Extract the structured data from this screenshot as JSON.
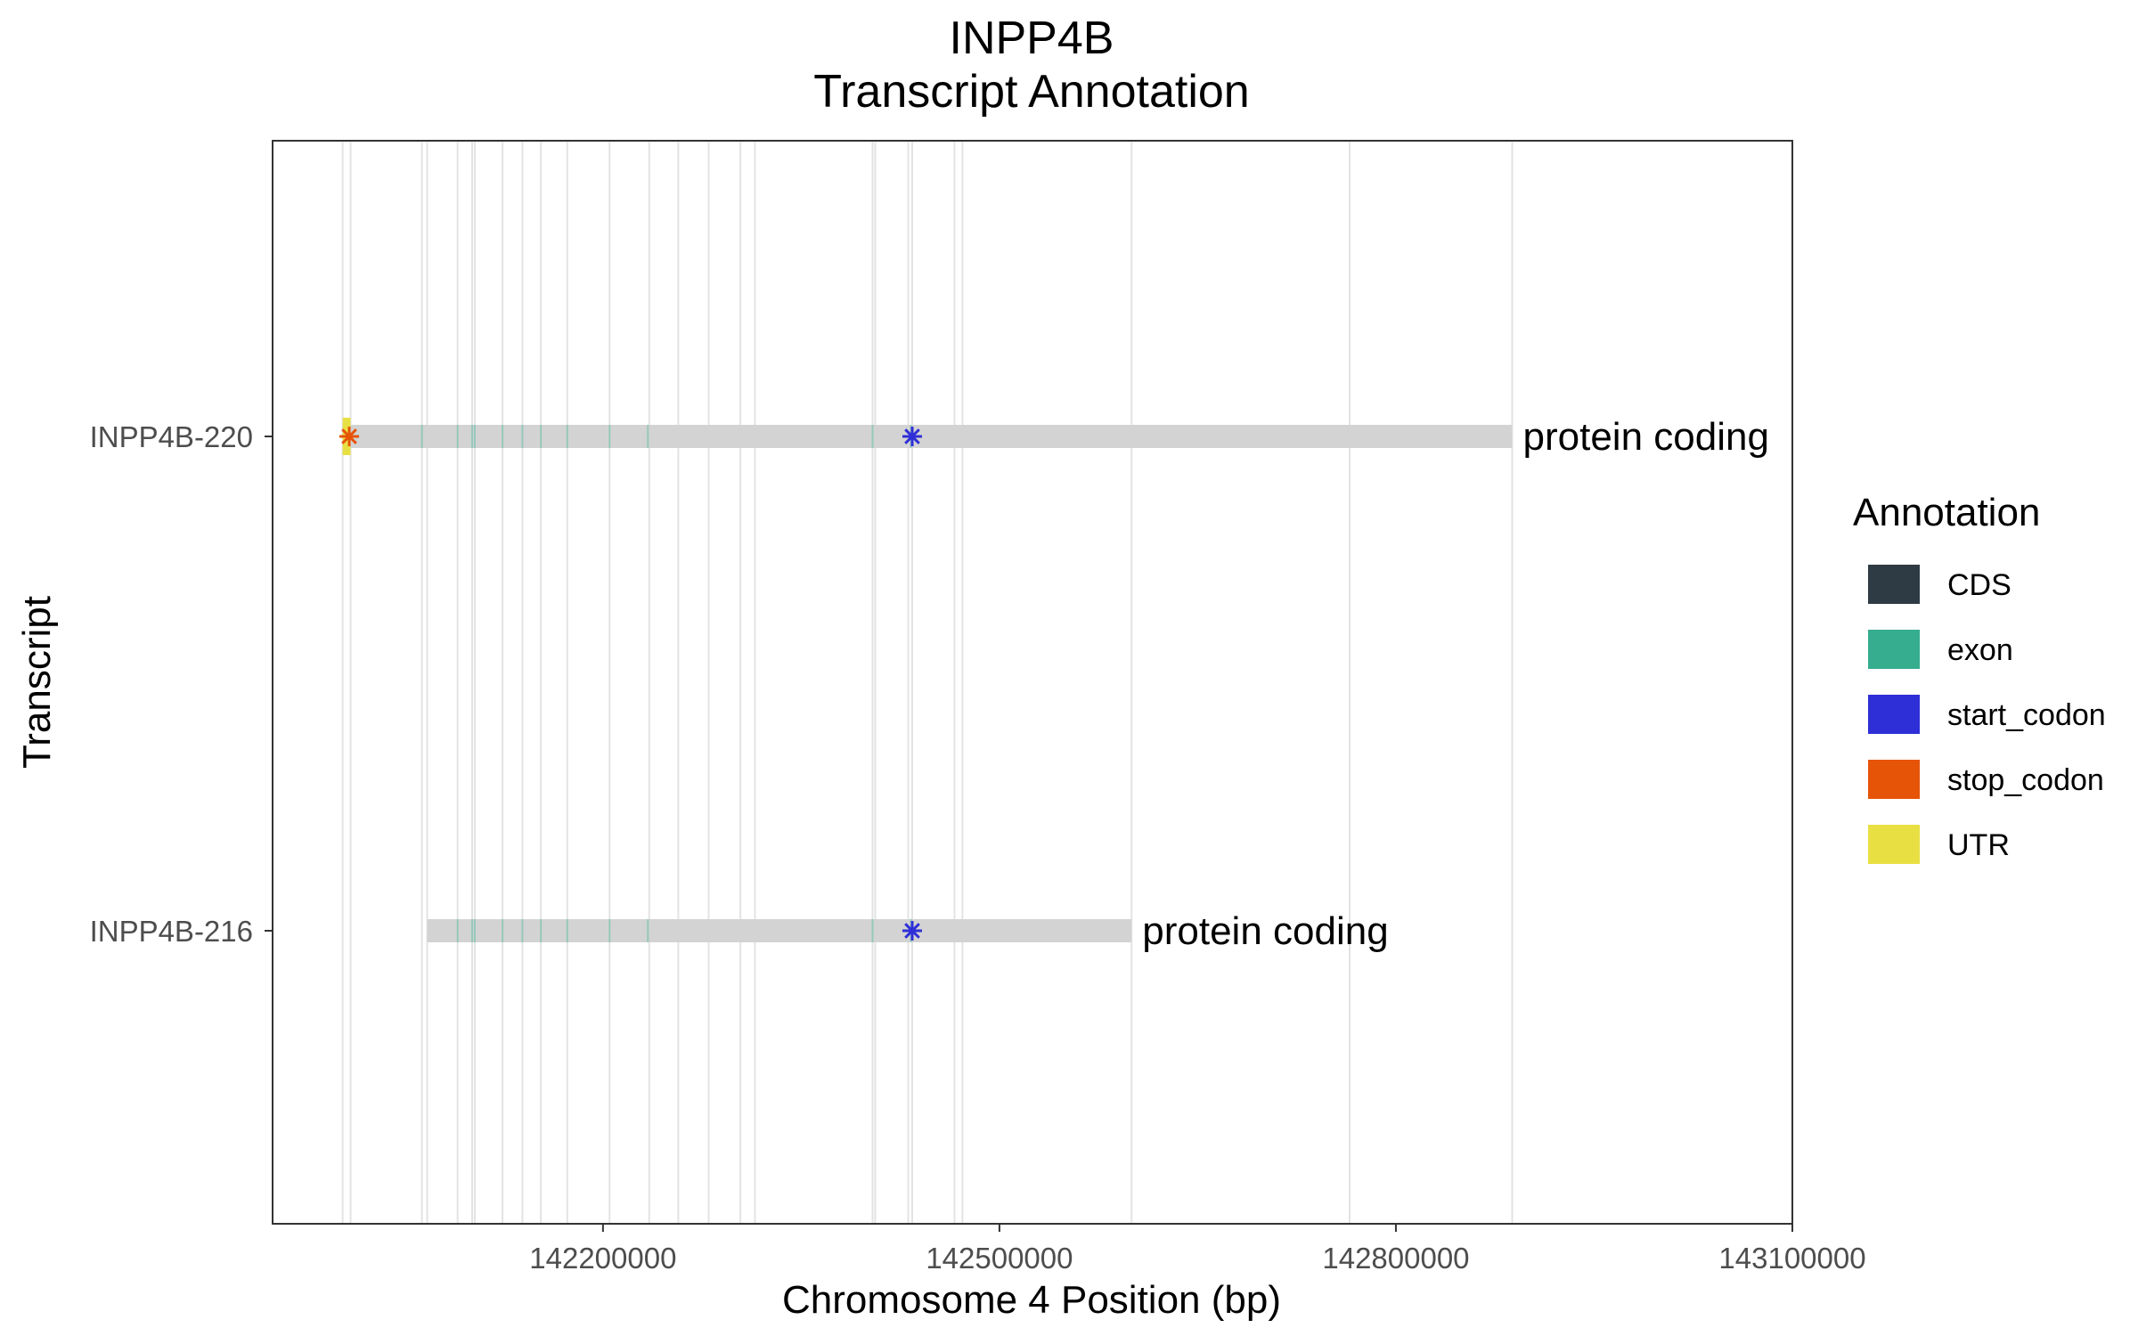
{
  "chart_data": {
    "type": "gene-track",
    "title": "INPP4B",
    "subtitle": "Transcript Annotation",
    "xlabel": "Chromosome 4 Position (bp)",
    "ylabel": "Transcript",
    "xlim": [
      141950000,
      143100000
    ],
    "x_ticks": [
      142200000,
      142500000,
      142800000,
      143100000
    ],
    "x_tick_labels": [
      "142200000",
      "142500000",
      "142800000",
      "143100000"
    ],
    "grid": true,
    "legend_position": "right",
    "legend": {
      "title": "Annotation",
      "items": [
        {
          "label": "CDS",
          "color": "#2e3a44"
        },
        {
          "label": "exon",
          "color": "#35ad8e"
        },
        {
          "label": "start_codon",
          "color": "#2f2fd8"
        },
        {
          "label": "stop_codon",
          "color": "#e65408"
        },
        {
          "label": "UTR",
          "color": "#e8e043"
        }
      ]
    },
    "exon_boundaries": [
      142003000,
      142009000,
      142063000,
      142067000,
      142090000,
      142101000,
      142103000,
      142124000,
      142139000,
      142153000,
      142173000,
      142205000,
      142235000,
      142257000,
      142280000,
      142304000,
      142315000,
      142404000,
      142406000,
      142431000,
      142434000,
      142466000,
      142472000,
      142600000,
      142765000,
      142888000
    ],
    "transcripts": [
      {
        "name": "INPP4B-220",
        "biotype": "protein coding",
        "start": 142003000,
        "end": 142888000,
        "utr": [
          142003000,
          142009000
        ],
        "exons": [
          142063000,
          142090000,
          142101000,
          142103000,
          142124000,
          142139000,
          142153000,
          142173000,
          142205000,
          142234000,
          142404000,
          142433000
        ],
        "start_codon": 142434000,
        "stop_codon": 142008000
      },
      {
        "name": "INPP4B-216",
        "biotype": "protein coding",
        "start": 142067000,
        "end": 142600000,
        "utr": null,
        "exons": [
          142090000,
          142101000,
          142103000,
          142124000,
          142139000,
          142153000,
          142173000,
          142205000,
          142234000,
          142404000,
          142433000
        ],
        "start_codon": 142434000,
        "stop_codon": null
      }
    ]
  }
}
